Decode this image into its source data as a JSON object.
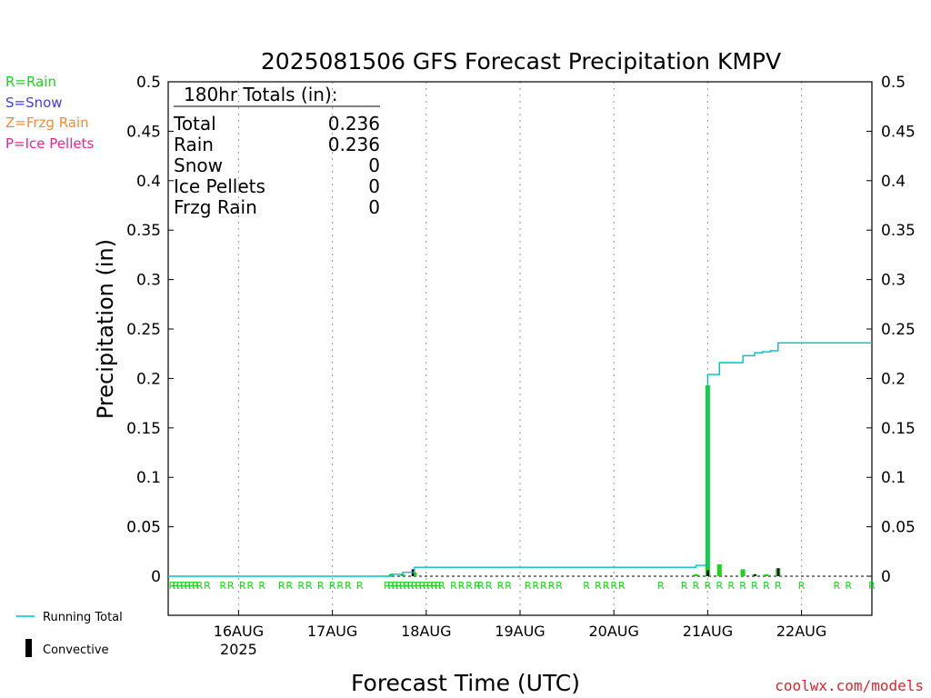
{
  "chart_data": {
    "type": "bar",
    "title": "2025081506 GFS Forecast Precipitation KMPV",
    "xlabel": "Forecast Time (UTC)",
    "ylabel": "Precipitation (in)",
    "ylim": [
      0,
      0.5
    ],
    "yticks": [
      "0",
      "0.05",
      "0.1",
      "0.15",
      "0.2",
      "0.25",
      "0.3",
      "0.35",
      "0.4",
      "0.45",
      "0.5"
    ],
    "x_unit": "forecast hour",
    "xlim": [
      0,
      180
    ],
    "grid": "vertical dotted at day boundaries",
    "xticks": [
      {
        "hour": 18,
        "label": "16AUG",
        "sublabel": "2025"
      },
      {
        "hour": 42,
        "label": "17AUG"
      },
      {
        "hour": 66,
        "label": "18AUG"
      },
      {
        "hour": 90,
        "label": "19AUG"
      },
      {
        "hour": 114,
        "label": "20AUG"
      },
      {
        "hour": 138,
        "label": "21AUG"
      },
      {
        "hour": 162,
        "label": "22AUG"
      }
    ],
    "rain_bars": [
      {
        "hour": 57,
        "value": 0.002
      },
      {
        "hour": 60,
        "value": 0.002
      },
      {
        "hour": 63,
        "value": 0.004
      },
      {
        "hour": 135,
        "value": 0.002
      },
      {
        "hour": 138,
        "value": 0.193
      },
      {
        "hour": 141,
        "value": 0.012
      },
      {
        "hour": 147,
        "value": 0.007
      },
      {
        "hour": 150,
        "value": 0.002
      },
      {
        "hour": 153,
        "value": 0.002
      },
      {
        "hour": 156,
        "value": 0.008
      }
    ],
    "convective_bars": [
      {
        "hour": 62.5,
        "value": 0.007
      },
      {
        "hour": 138,
        "value": 0.006
      },
      {
        "hour": 150,
        "value": 0.002
      },
      {
        "hour": 156,
        "value": 0.008
      }
    ],
    "running_total": [
      [
        0,
        0
      ],
      [
        55,
        0
      ],
      [
        57,
        0.002
      ],
      [
        60,
        0.004
      ],
      [
        63,
        0.009
      ],
      [
        133,
        0.009
      ],
      [
        135,
        0.011
      ],
      [
        138,
        0.204
      ],
      [
        141,
        0.216
      ],
      [
        146,
        0.216
      ],
      [
        147,
        0.223
      ],
      [
        149,
        0.223
      ],
      [
        150,
        0.226
      ],
      [
        152,
        0.227
      ],
      [
        154,
        0.228
      ],
      [
        156,
        0.236
      ],
      [
        180,
        0.236
      ]
    ],
    "ptype_hours": [
      1,
      2,
      3,
      4,
      5,
      6,
      7,
      8,
      10,
      14,
      16,
      19,
      21,
      24,
      29,
      31,
      34,
      36,
      39,
      42,
      44,
      46,
      49,
      56,
      57,
      58,
      59,
      60,
      61,
      62,
      63,
      64,
      65,
      66,
      67,
      68,
      69,
      70,
      73,
      75,
      77,
      79,
      80,
      82,
      85,
      87,
      92,
      94,
      96,
      98,
      100,
      107,
      110,
      112,
      114,
      116,
      126,
      132,
      135,
      138,
      141,
      144,
      147,
      150,
      153,
      156,
      162,
      171,
      174,
      180
    ],
    "ptype_letter": "R",
    "summary": {
      "heading": "180hr Totals (in):",
      "rows": [
        {
          "label": "Total",
          "value": "0.236"
        },
        {
          "label": "Rain",
          "value": "0.236"
        },
        {
          "label": "Snow",
          "value": "0"
        },
        {
          "label": "Ice Pellets",
          "value": "0"
        },
        {
          "label": "Frzg Rain",
          "value": "0"
        }
      ]
    },
    "legend": {
      "running_total": "Running Total",
      "convective": "Convective"
    },
    "colors": {
      "rain": "#19d419",
      "convective": "#000000",
      "running_total": "#00c0c0"
    }
  },
  "ptype_key": [
    {
      "text": "R=Rain",
      "color": "#19d419"
    },
    {
      "text": "S=Snow",
      "color": "#3f3fe6"
    },
    {
      "text": "Z=Frzg Rain",
      "color": "#f08c3a"
    },
    {
      "text": "P=Ice Pellets",
      "color": "#e6288c"
    }
  ],
  "credit": "coolwx.com/models"
}
